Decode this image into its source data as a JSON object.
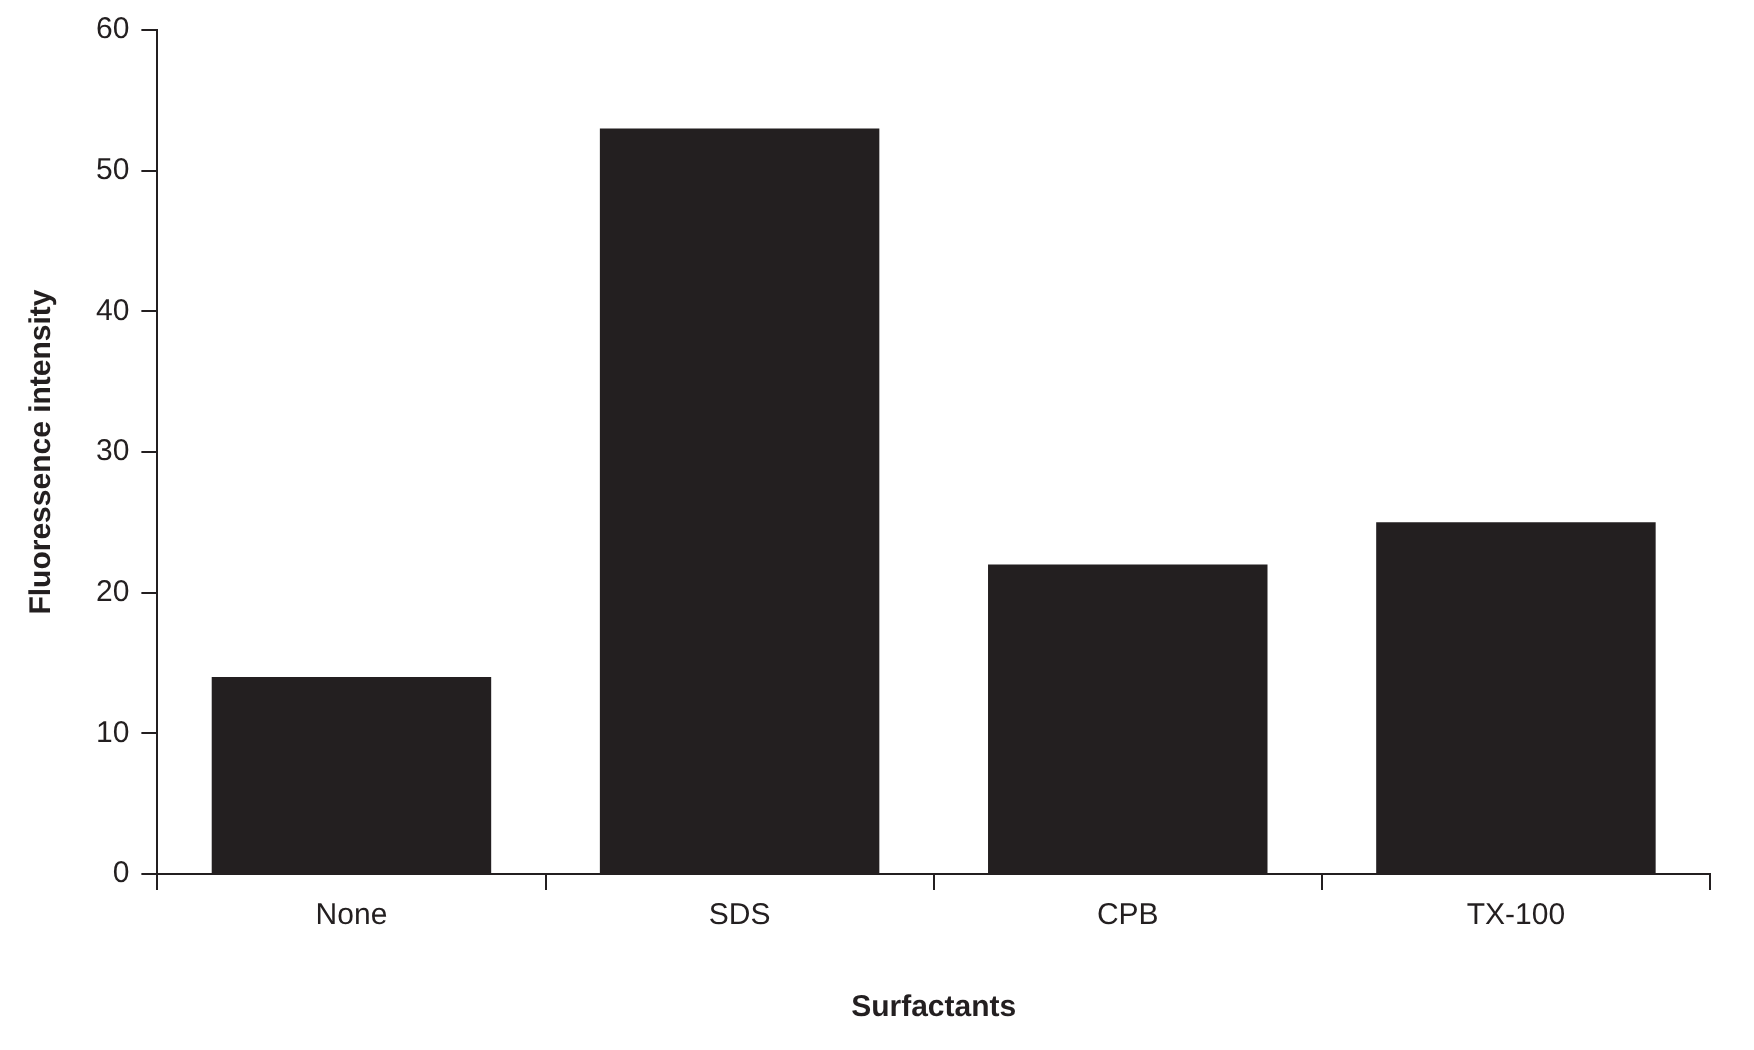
{
  "chart_data": {
    "type": "bar",
    "xlabel": "Surfactants",
    "ylabel": "Fluoressence intensity",
    "categories": [
      "None",
      "SDS",
      "CPB",
      "TX-100"
    ],
    "values": [
      14,
      53,
      22,
      25
    ],
    "color": "#231f20",
    "ylim": [
      0,
      60
    ],
    "yticks": [
      0,
      10,
      20,
      30,
      40,
      50,
      60
    ],
    "grid": false,
    "legend": false
  }
}
